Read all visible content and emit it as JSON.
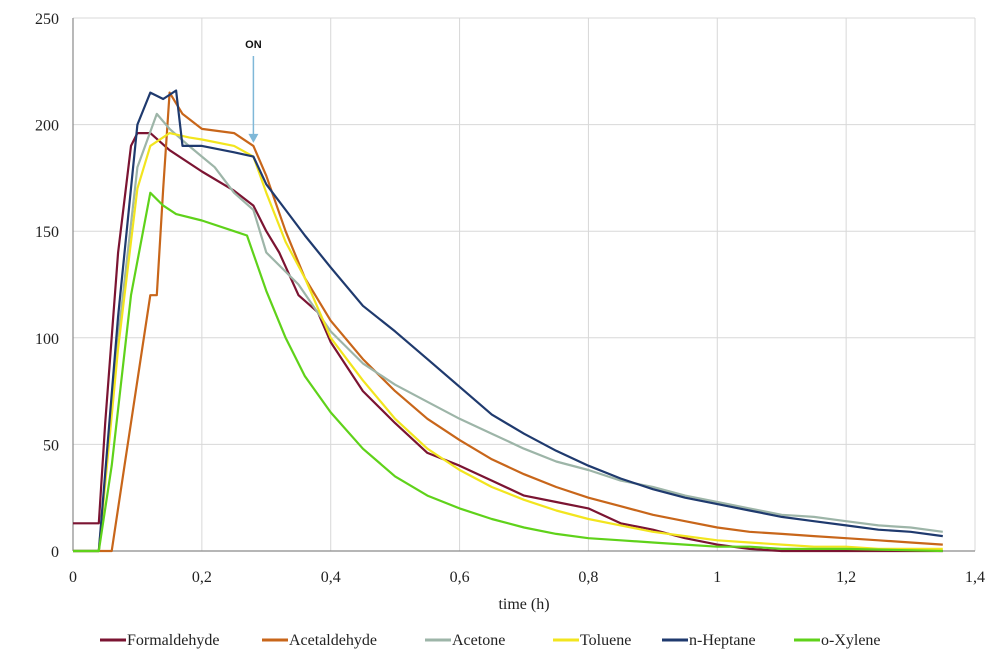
{
  "chart_data": {
    "type": "line",
    "xlabel": "time (h)",
    "ylabel": "",
    "xlim": [
      0,
      1.4
    ],
    "ylim": [
      0,
      250
    ],
    "x_ticks": [
      "0",
      "0,2",
      "0,4",
      "0,6",
      "0,8",
      "1",
      "1,2",
      "1,4"
    ],
    "y_ticks": [
      "0",
      "50",
      "100",
      "150",
      "200",
      "250"
    ],
    "grid": true,
    "legend_position": "bottom",
    "annotation": {
      "text": "ON",
      "x": 0.28,
      "y": 190
    },
    "series": [
      {
        "name": "Formaldehyde",
        "color": "#7b1432",
        "points": [
          [
            0,
            13
          ],
          [
            0.04,
            13
          ],
          [
            0.05,
            60
          ],
          [
            0.07,
            140
          ],
          [
            0.09,
            190
          ],
          [
            0.1,
            196
          ],
          [
            0.12,
            196
          ],
          [
            0.15,
            188
          ],
          [
            0.2,
            178
          ],
          [
            0.25,
            169
          ],
          [
            0.28,
            162
          ],
          [
            0.3,
            150
          ],
          [
            0.32,
            140
          ],
          [
            0.35,
            120
          ],
          [
            0.38,
            112
          ],
          [
            0.4,
            98
          ],
          [
            0.45,
            75
          ],
          [
            0.5,
            60
          ],
          [
            0.55,
            46
          ],
          [
            0.6,
            40
          ],
          [
            0.65,
            33
          ],
          [
            0.7,
            26
          ],
          [
            0.75,
            23
          ],
          [
            0.8,
            20
          ],
          [
            0.85,
            13
          ],
          [
            0.9,
            10
          ],
          [
            0.95,
            6
          ],
          [
            1.0,
            3
          ],
          [
            1.05,
            1
          ],
          [
            1.1,
            0
          ],
          [
            1.2,
            0
          ],
          [
            1.35,
            0
          ]
        ]
      },
      {
        "name": "Acetaldehyde",
        "color": "#c8661a",
        "points": [
          [
            0,
            0
          ],
          [
            0.06,
            0
          ],
          [
            0.08,
            40
          ],
          [
            0.1,
            80
          ],
          [
            0.12,
            120
          ],
          [
            0.13,
            120
          ],
          [
            0.14,
            170
          ],
          [
            0.15,
            215
          ],
          [
            0.17,
            205
          ],
          [
            0.2,
            198
          ],
          [
            0.25,
            196
          ],
          [
            0.28,
            190
          ],
          [
            0.3,
            176
          ],
          [
            0.33,
            150
          ],
          [
            0.36,
            128
          ],
          [
            0.4,
            108
          ],
          [
            0.45,
            90
          ],
          [
            0.5,
            75
          ],
          [
            0.55,
            62
          ],
          [
            0.6,
            52
          ],
          [
            0.65,
            43
          ],
          [
            0.7,
            36
          ],
          [
            0.75,
            30
          ],
          [
            0.8,
            25
          ],
          [
            0.85,
            21
          ],
          [
            0.9,
            17
          ],
          [
            0.95,
            14
          ],
          [
            1.0,
            11
          ],
          [
            1.05,
            9
          ],
          [
            1.1,
            8
          ],
          [
            1.15,
            7
          ],
          [
            1.2,
            6
          ],
          [
            1.25,
            5
          ],
          [
            1.3,
            4
          ],
          [
            1.35,
            3
          ]
        ]
      },
      {
        "name": "Acetone",
        "color": "#9db5a8",
        "points": [
          [
            0,
            0
          ],
          [
            0.04,
            0
          ],
          [
            0.07,
            100
          ],
          [
            0.1,
            180
          ],
          [
            0.13,
            205
          ],
          [
            0.15,
            198
          ],
          [
            0.18,
            190
          ],
          [
            0.2,
            185
          ],
          [
            0.22,
            180
          ],
          [
            0.25,
            168
          ],
          [
            0.28,
            160
          ],
          [
            0.3,
            140
          ],
          [
            0.35,
            125
          ],
          [
            0.4,
            103
          ],
          [
            0.45,
            88
          ],
          [
            0.5,
            78
          ],
          [
            0.55,
            70
          ],
          [
            0.6,
            62
          ],
          [
            0.65,
            55
          ],
          [
            0.7,
            48
          ],
          [
            0.75,
            42
          ],
          [
            0.8,
            38
          ],
          [
            0.85,
            33
          ],
          [
            0.9,
            30
          ],
          [
            0.95,
            26
          ],
          [
            1.0,
            23
          ],
          [
            1.05,
            20
          ],
          [
            1.1,
            17
          ],
          [
            1.15,
            16
          ],
          [
            1.2,
            14
          ],
          [
            1.25,
            12
          ],
          [
            1.3,
            11
          ],
          [
            1.35,
            9
          ]
        ]
      },
      {
        "name": "Toluene",
        "color": "#f2e51e",
        "points": [
          [
            0,
            0
          ],
          [
            0.04,
            0
          ],
          [
            0.07,
            95
          ],
          [
            0.1,
            170
          ],
          [
            0.12,
            190
          ],
          [
            0.15,
            196
          ],
          [
            0.18,
            194
          ],
          [
            0.2,
            193
          ],
          [
            0.25,
            190
          ],
          [
            0.28,
            185
          ],
          [
            0.3,
            168
          ],
          [
            0.33,
            145
          ],
          [
            0.36,
            128
          ],
          [
            0.4,
            100
          ],
          [
            0.45,
            80
          ],
          [
            0.5,
            62
          ],
          [
            0.55,
            48
          ],
          [
            0.6,
            38
          ],
          [
            0.65,
            30
          ],
          [
            0.7,
            24
          ],
          [
            0.75,
            19
          ],
          [
            0.8,
            15
          ],
          [
            0.85,
            12
          ],
          [
            0.9,
            9
          ],
          [
            0.95,
            7
          ],
          [
            1.0,
            5
          ],
          [
            1.05,
            4
          ],
          [
            1.1,
            3
          ],
          [
            1.15,
            2
          ],
          [
            1.2,
            2
          ],
          [
            1.25,
            1
          ],
          [
            1.3,
            1
          ],
          [
            1.35,
            1
          ]
        ]
      },
      {
        "name": "n-Heptane",
        "color": "#1f3a6e",
        "points": [
          [
            0,
            0
          ],
          [
            0.04,
            0
          ],
          [
            0.07,
            110
          ],
          [
            0.1,
            200
          ],
          [
            0.12,
            215
          ],
          [
            0.14,
            212
          ],
          [
            0.16,
            216
          ],
          [
            0.17,
            190
          ],
          [
            0.2,
            190
          ],
          [
            0.25,
            187
          ],
          [
            0.28,
            185
          ],
          [
            0.3,
            172
          ],
          [
            0.33,
            160
          ],
          [
            0.36,
            148
          ],
          [
            0.4,
            133
          ],
          [
            0.45,
            115
          ],
          [
            0.5,
            103
          ],
          [
            0.55,
            90
          ],
          [
            0.6,
            77
          ],
          [
            0.65,
            64
          ],
          [
            0.7,
            55
          ],
          [
            0.75,
            47
          ],
          [
            0.8,
            40
          ],
          [
            0.85,
            34
          ],
          [
            0.9,
            29
          ],
          [
            0.95,
            25
          ],
          [
            1.0,
            22
          ],
          [
            1.05,
            19
          ],
          [
            1.1,
            16
          ],
          [
            1.15,
            14
          ],
          [
            1.2,
            12
          ],
          [
            1.25,
            10
          ],
          [
            1.3,
            9
          ],
          [
            1.35,
            7
          ]
        ]
      },
      {
        "name": "o-Xylene",
        "color": "#5fd21a",
        "points": [
          [
            0,
            0
          ],
          [
            0.04,
            0
          ],
          [
            0.06,
            40
          ],
          [
            0.09,
            120
          ],
          [
            0.12,
            168
          ],
          [
            0.14,
            162
          ],
          [
            0.16,
            158
          ],
          [
            0.2,
            155
          ],
          [
            0.25,
            150
          ],
          [
            0.27,
            148
          ],
          [
            0.3,
            122
          ],
          [
            0.33,
            100
          ],
          [
            0.36,
            82
          ],
          [
            0.4,
            65
          ],
          [
            0.45,
            48
          ],
          [
            0.5,
            35
          ],
          [
            0.55,
            26
          ],
          [
            0.6,
            20
          ],
          [
            0.65,
            15
          ],
          [
            0.7,
            11
          ],
          [
            0.75,
            8
          ],
          [
            0.8,
            6
          ],
          [
            0.85,
            5
          ],
          [
            0.9,
            4
          ],
          [
            0.95,
            3
          ],
          [
            1.0,
            2
          ],
          [
            1.05,
            2
          ],
          [
            1.1,
            1
          ],
          [
            1.2,
            1
          ],
          [
            1.35,
            0
          ]
        ]
      }
    ]
  }
}
